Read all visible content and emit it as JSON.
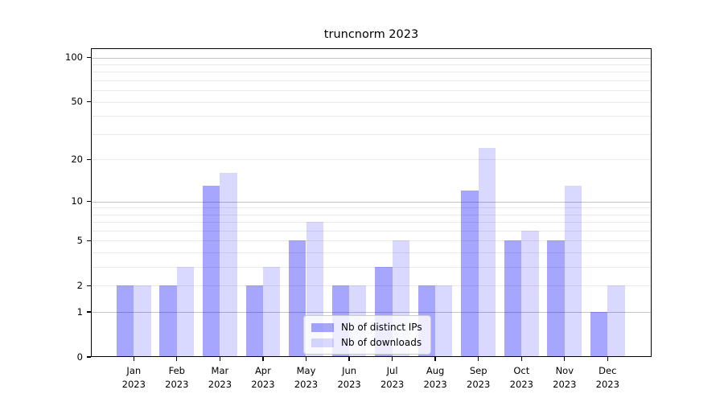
{
  "title": "truncnorm 2023",
  "legend": {
    "items": [
      {
        "label": "Nb of distinct IPs",
        "color": "rgba(0,0,255,0.35)"
      },
      {
        "label": "Nb of downloads",
        "color": "rgba(0,0,255,0.15)"
      }
    ],
    "position": "lower center"
  },
  "chart_data": {
    "type": "bar",
    "title": "truncnorm 2023",
    "categories": [
      "Jan",
      "Feb",
      "Mar",
      "Apr",
      "May",
      "Jun",
      "Jul",
      "Aug",
      "Sep",
      "Oct",
      "Nov",
      "Dec"
    ],
    "category_year": "2023",
    "series": [
      {
        "name": "Nb of distinct IPs",
        "color": "rgba(0,0,255,0.35)",
        "values": [
          2,
          2,
          13,
          2,
          5,
          2,
          3,
          2,
          12,
          5,
          5,
          1
        ]
      },
      {
        "name": "Nb of downloads",
        "color": "rgba(0,0,255,0.15)",
        "values": [
          2,
          3,
          16,
          3,
          7,
          2,
          5,
          2,
          24,
          6,
          13,
          2
        ]
      }
    ],
    "xlabel": "",
    "ylabel": "",
    "yscale": "log1p",
    "ylim": [
      0,
      115.5
    ],
    "ytick_labels": [
      "0",
      "1",
      "2",
      "5",
      "10",
      "20",
      "50",
      "100"
    ],
    "ytick_values": [
      0,
      1,
      2,
      5,
      10,
      20,
      50,
      100
    ],
    "major_gridlines": [
      1,
      10,
      100
    ],
    "minor_gridlines": [
      2,
      3,
      4,
      5,
      6,
      7,
      8,
      9,
      20,
      30,
      40,
      50,
      60,
      70,
      80,
      90
    ],
    "grid": true,
    "legend_position": "lower center"
  },
  "colors": {
    "background": "#ffffff",
    "axis": "#000000",
    "major_grid": "#c3c3c3",
    "minor_grid": "#eaeaea",
    "text": "#000000"
  }
}
